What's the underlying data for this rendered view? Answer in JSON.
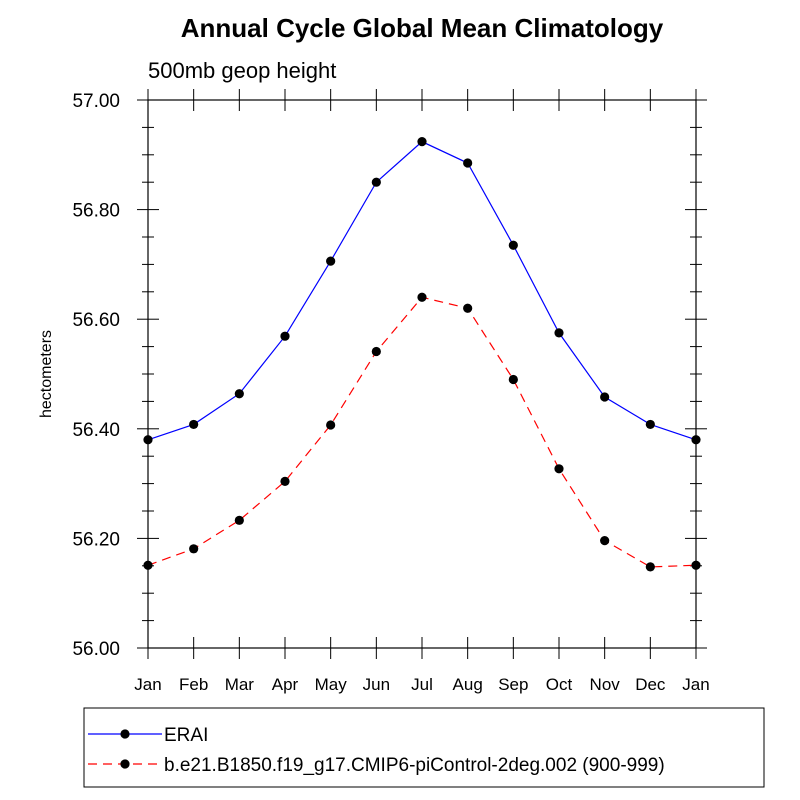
{
  "chart_data": {
    "type": "line",
    "title": "Annual Cycle Global Mean Climatology",
    "subtitle": "500mb geop height",
    "ylabel": "hectometers",
    "xlabel": "",
    "categories": [
      "Jan",
      "Feb",
      "Mar",
      "Apr",
      "May",
      "Jun",
      "Jul",
      "Aug",
      "Sep",
      "Oct",
      "Nov",
      "Dec",
      "Jan"
    ],
    "ylim": [
      56.0,
      57.0
    ],
    "yticks": [
      "56.00",
      "56.20",
      "56.40",
      "56.60",
      "56.80",
      "57.00"
    ],
    "grid": false,
    "legend_position": "bottom",
    "series": [
      {
        "name": "ERAI",
        "color": "#0000ff",
        "line_style": "solid",
        "marker": "filled-circle",
        "values": [
          56.38,
          56.408,
          56.464,
          56.569,
          56.706,
          56.85,
          56.924,
          56.885,
          56.735,
          56.575,
          56.458,
          56.408,
          56.38
        ]
      },
      {
        "name": "b.e21.B1850.f19_g17.CMIP6-piControl-2deg.002 (900-999)",
        "color": "#ff0000",
        "line_style": "dashed",
        "marker": "filled-circle",
        "values": [
          56.151,
          56.181,
          56.233,
          56.304,
          56.407,
          56.541,
          56.64,
          56.62,
          56.49,
          56.327,
          56.196,
          56.148,
          56.151
        ]
      }
    ]
  }
}
